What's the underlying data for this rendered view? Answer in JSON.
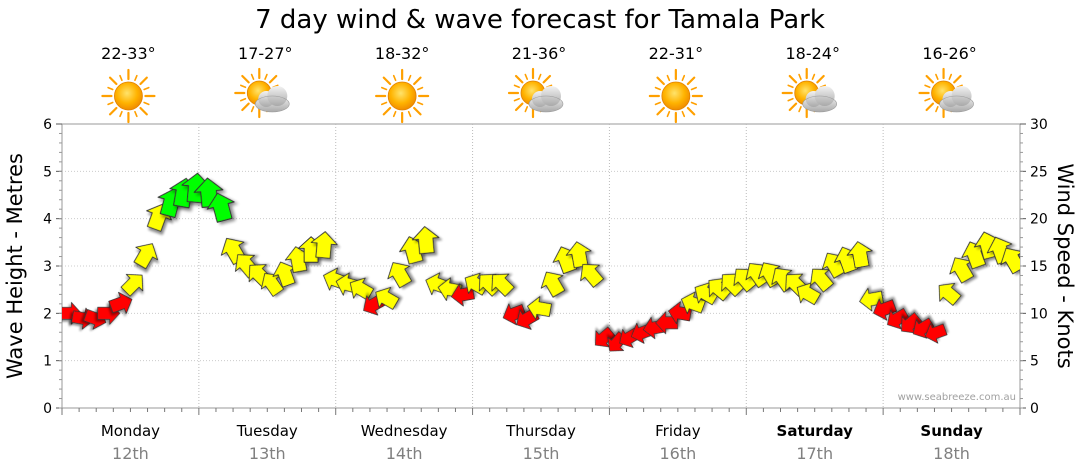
{
  "chart_data": {
    "type": "line",
    "title": "7 day wind & wave forecast for Tamala Park",
    "ylabel": "Wave Height - Metres",
    "y2label": "Wind Speed - Knots",
    "ylim": [
      0,
      6
    ],
    "y2lim": [
      0,
      30
    ],
    "yticks": [
      "0",
      "1",
      "2",
      "3",
      "4",
      "5",
      "6"
    ],
    "y2ticks": [
      "0",
      "5",
      "10",
      "15",
      "20",
      "25",
      "30"
    ],
    "grid": true,
    "credit": "www.seabreeze.com.au",
    "days": [
      {
        "name": "Monday",
        "date": "12th",
        "temp": "22-33°",
        "icon": "sun-icon",
        "bold": false
      },
      {
        "name": "Tuesday",
        "date": "13th",
        "temp": "17-27°",
        "icon": "sun-cloud-icon",
        "bold": false
      },
      {
        "name": "Wednesday",
        "date": "14th",
        "temp": "18-32°",
        "icon": "sun-icon",
        "bold": false
      },
      {
        "name": "Thursday",
        "date": "15th",
        "temp": "21-36°",
        "icon": "sun-cloud-icon",
        "bold": false
      },
      {
        "name": "Friday",
        "date": "16th",
        "temp": "22-31°",
        "icon": "sun-icon",
        "bold": false
      },
      {
        "name": "Saturday",
        "date": "17th",
        "temp": "18-24°",
        "icon": "sun-cloud-icon",
        "bold": true
      },
      {
        "name": "Sunday",
        "date": "18th",
        "temp": "16-26°",
        "icon": "sun-cloud-icon",
        "bold": true
      }
    ],
    "series": [
      {
        "name": "Wind Speed (knots, arrows show direction)",
        "color_bands": {
          "low": "#ff0000",
          "mid": "#ffff00",
          "high": "#00ff00"
        },
        "wind": [
          9.5,
          9.0,
          9.2,
          10.0,
          10.8,
          12.5,
          15.5,
          18.0,
          21.0,
          22.0,
          23.0,
          22.5,
          21.0,
          17.5,
          15.0,
          14.0,
          13.0,
          14.0,
          15.5,
          16.5,
          17.5,
          13.0,
          12.0,
          12.5,
          10.5,
          12.5,
          16.0,
          18.0,
          18.5,
          12.5,
          12.0,
          11.0,
          12.5,
          13.0,
          13.5,
          10.5,
          11.0,
          12.5,
          15.5,
          17.0,
          16.0,
          14.5,
          8.5,
          7.5,
          8.0,
          9.0,
          9.5,
          10.0,
          11.0,
          12.0,
          13.0,
          13.5,
          14.0,
          14.5,
          15.0,
          15.0,
          14.5,
          13.5,
          12.5,
          14.5,
          15.5,
          16.5,
          16.5,
          12.0,
          11.0,
          10.0,
          9.5,
          9.0,
          8.5,
          12.5,
          16.0,
          17.5,
          18.0,
          17.5,
          16.5
        ],
        "dir": [
          90,
          100,
          110,
          90,
          70,
          45,
          30,
          20,
          15,
          10,
          5,
          -5,
          -15,
          -30,
          -40,
          -45,
          -35,
          -20,
          -10,
          0,
          5,
          -70,
          -75,
          -60,
          -120,
          -60,
          -30,
          -15,
          -5,
          -70,
          -80,
          -100,
          -60,
          -45,
          -45,
          -110,
          -120,
          -80,
          -30,
          -20,
          -10,
          -40,
          -130,
          -140,
          -120,
          -110,
          -100,
          -90,
          -80,
          -70,
          -60,
          -50,
          -45,
          -40,
          -35,
          -30,
          -35,
          -45,
          -60,
          -40,
          -30,
          -20,
          -10,
          -100,
          -110,
          -120,
          -130,
          -120,
          -110,
          -50,
          -30,
          -20,
          -15,
          -20,
          -30
        ],
        "arrow_heights_m": [
          2.0,
          1.9,
          1.9,
          2.0,
          2.2,
          2.6,
          3.2,
          4.0,
          4.3,
          4.5,
          4.6,
          4.5,
          4.2,
          3.3,
          3.0,
          2.8,
          2.6,
          2.8,
          3.1,
          3.3,
          3.4,
          2.7,
          2.6,
          2.5,
          2.2,
          2.3,
          2.8,
          3.3,
          3.5,
          2.6,
          2.5,
          2.4,
          2.6,
          2.6,
          2.6,
          2.0,
          1.9,
          2.1,
          2.6,
          3.1,
          3.2,
          2.8,
          1.5,
          1.4,
          1.5,
          1.6,
          1.7,
          1.8,
          2.0,
          2.2,
          2.4,
          2.5,
          2.6,
          2.7,
          2.8,
          2.8,
          2.7,
          2.6,
          2.4,
          2.7,
          3.0,
          3.1,
          3.2,
          2.3,
          2.1,
          1.9,
          1.8,
          1.7,
          1.6,
          2.4,
          2.9,
          3.2,
          3.4,
          3.3,
          3.1
        ]
      }
    ]
  }
}
